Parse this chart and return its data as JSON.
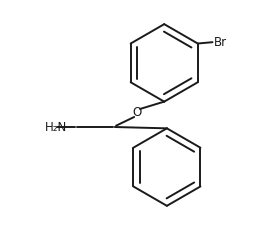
{
  "bg_color": "#ffffff",
  "line_color": "#1a1a1a",
  "line_width": 1.4,
  "label_H2N": "H₂N",
  "label_O": "O",
  "label_Br": "Br",
  "figsize": [
    2.75,
    2.46
  ],
  "dpi": 100,
  "xlim": [
    0,
    10
  ],
  "ylim": [
    0,
    9
  ]
}
